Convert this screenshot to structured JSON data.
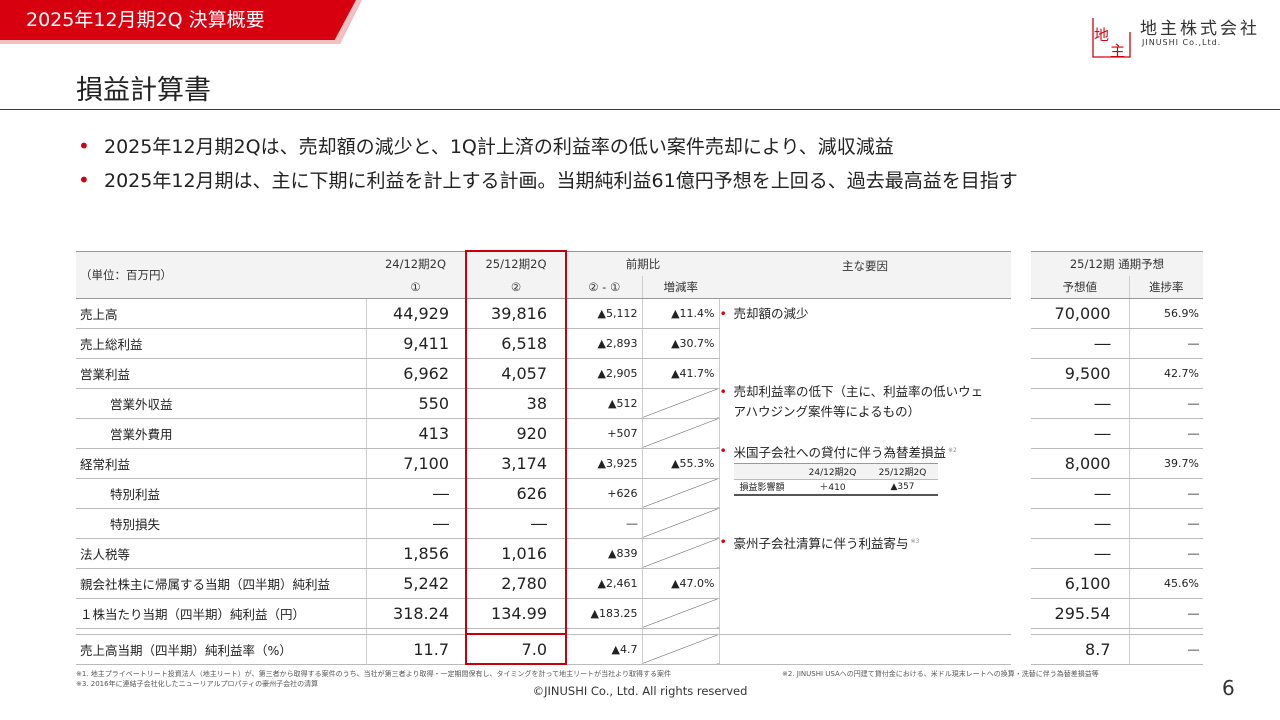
{
  "header": {
    "banner_title": "2025年12月期2Q 決算概要",
    "logo_name": "地主株式会社",
    "logo_en": "JINUSHI Co.,Ltd.",
    "logo_mark_top": "地",
    "logo_mark_bottom": "主"
  },
  "page_title": "損益計算書",
  "bullets": [
    "2025年12月期2Qは、売却額の減少と、1Q計上済の利益率の低い案件売却により、減収減益",
    "2025年12月期は、主に下期に利益を計上する計画。当期純利益61億円予想を上回る、過去最高益を目指す"
  ],
  "table": {
    "unit_label": "（単位：百万円）",
    "col_prev": "24/12期2Q",
    "col_prev_mark": "①",
    "col_curr": "25/12期2Q",
    "col_curr_mark": "②",
    "col_yoy": "前期比",
    "col_diff": "② - ①",
    "col_rate": "増減率",
    "col_factors": "主な要因",
    "col_forecast_group": "25/12期 通期予想",
    "col_forecast": "予想値",
    "col_progress": "進捗率",
    "rows": [
      {
        "label": "売上高",
        "prev": "44,929",
        "curr": "39,816",
        "diff": "▲5,112",
        "rate": "▲11.4%",
        "forecast": "70,000",
        "progress": "56.9%"
      },
      {
        "label": "売上総利益",
        "prev": "9,411",
        "curr": "6,518",
        "diff": "▲2,893",
        "rate": "▲30.7%",
        "forecast": "―",
        "progress": "―"
      },
      {
        "label": "営業利益",
        "prev": "6,962",
        "curr": "4,057",
        "diff": "▲2,905",
        "rate": "▲41.7%",
        "forecast": "9,500",
        "progress": "42.7%"
      },
      {
        "label": "営業外収益",
        "prev": "550",
        "curr": "38",
        "diff": "▲512",
        "rate": "",
        "forecast": "―",
        "progress": "―"
      },
      {
        "label": "営業外費用",
        "prev": "413",
        "curr": "920",
        "diff": "+507",
        "rate": "",
        "forecast": "―",
        "progress": "―"
      },
      {
        "label": "経常利益",
        "prev": "7,100",
        "curr": "3,174",
        "diff": "▲3,925",
        "rate": "▲55.3%",
        "forecast": "8,000",
        "progress": "39.7%"
      },
      {
        "label": "特別利益",
        "prev": "―",
        "curr": "626",
        "diff": "+626",
        "rate": "",
        "forecast": "―",
        "progress": "―"
      },
      {
        "label": "特別損失",
        "prev": "―",
        "curr": "―",
        "diff": "―",
        "rate": "",
        "forecast": "―",
        "progress": "―"
      },
      {
        "label": "法人税等",
        "prev": "1,856",
        "curr": "1,016",
        "diff": "▲839",
        "rate": "",
        "forecast": "―",
        "progress": "―"
      },
      {
        "label": "親会社株主に帰属する当期（四半期）純利益",
        "prev": "5,242",
        "curr": "2,780",
        "diff": "▲2,461",
        "rate": "▲47.0%",
        "forecast": "6,100",
        "progress": "45.6%"
      },
      {
        "label": "１株当たり当期（四半期）純利益（円）",
        "prev": "318.24",
        "curr": "134.99",
        "diff": "▲183.25",
        "rate": "",
        "forecast": "295.54",
        "progress": "―"
      }
    ],
    "last_row": {
      "label": "売上高当期（四半期）純利益率（%）",
      "prev": "11.7",
      "curr": "7.0",
      "diff": "▲4.7",
      "rate": "",
      "forecast": "8.7",
      "progress": "―"
    },
    "factors": {
      "f1": "売却額の減少",
      "f2a": "売却利益率の低下（主に、利益率の低いウェ",
      "f2b": "アハウジング案件等によるもの）",
      "f3": "米国子会社への貸付に伴う為替差損益",
      "f3_note": "※2",
      "f4": "豪州子会社清算に伴う利益寄与",
      "f4_note": "※3",
      "mini_col1": "24/12期2Q",
      "mini_col2": "25/12期2Q",
      "mini_label": "損益影響額",
      "mini_v1": "＋410",
      "mini_v2": "▲357"
    }
  },
  "footnotes": {
    "n1": "※1. 地主プライベートリート投資法人（地主リート）が、第三者から取得する案件のうち、当社が第三者より取得・一定期間保有し、タイミングを計って地主リートが当社より取得する案件",
    "n2": "※2. JINUSHI USAへの円建て貸付金における、米ドル現末レートへの換算・洗替に伴う為替差損益等",
    "n3": "※3. 2016年に連結子会社化したニューリアルプロパティの豪州子会社の清算"
  },
  "copyright": "©JINUSHI Co., Ltd. All rights reserved",
  "page_number": "6",
  "colors": {
    "accent": "#d7000f",
    "header_bg": "#f3f3f3"
  }
}
